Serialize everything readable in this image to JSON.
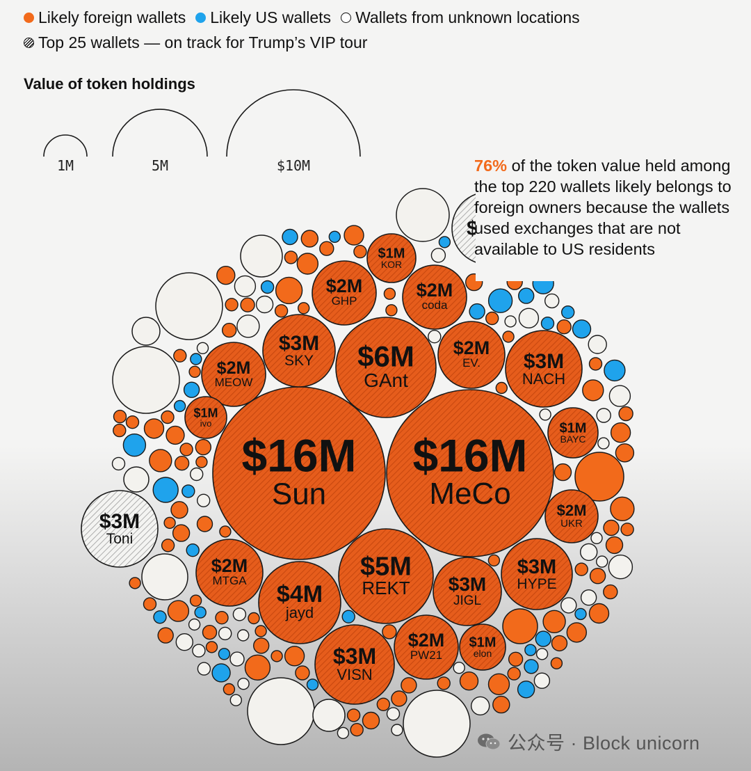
{
  "legend": {
    "foreign": "Likely foreign wallets",
    "us": "Likely US wallets",
    "unknown": "Wallets from unknown locations",
    "top25": "Top 25 wallets — on track for Trump’s VIP tour"
  },
  "size_legend": {
    "title": "Value of token holdings",
    "labels": [
      "1M",
      "5M",
      "$10M"
    ],
    "values_musd": [
      1,
      5,
      10
    ]
  },
  "annotation": {
    "highlight": "76%",
    "text": " of the token value held among the top 220 wallets likely belongs to foreign owners because the wallets used exchanges that are not available to US residents"
  },
  "watermark": "公众号 · Block unicorn",
  "colors": {
    "foreign": "#f26a1b",
    "foreign_hatched": "#e0581a",
    "us": "#1fa3ec",
    "unknown": "#f3f2ee",
    "top25_unknown": "#e8e8e6",
    "outline": "#1a1a1a"
  },
  "chart_data": {
    "type": "bubble",
    "value_unit": "USD millions",
    "labeled_wallets": [
      {
        "label": "$16M",
        "name": "Sun",
        "value": 16,
        "category": "foreign",
        "top25": true
      },
      {
        "label": "$16M",
        "name": "MeCo",
        "value": 16,
        "category": "foreign",
        "top25": true
      },
      {
        "label": "$6M",
        "name": "GAnt",
        "value": 6,
        "category": "foreign",
        "top25": true
      },
      {
        "label": "$5M",
        "name": "REKT",
        "value": 5,
        "category": "foreign",
        "top25": true
      },
      {
        "label": "$4M",
        "name": "jayd",
        "value": 4,
        "category": "foreign",
        "top25": true
      },
      {
        "label": "$3M",
        "name": "SKY",
        "value": 3,
        "category": "foreign",
        "top25": true
      },
      {
        "label": "$3M",
        "name": "NACH",
        "value": 3,
        "category": "foreign",
        "top25": true
      },
      {
        "label": "$3M",
        "name": "HYPE",
        "value": 3,
        "category": "foreign",
        "top25": true
      },
      {
        "label": "$3M",
        "name": "JIGL",
        "value": 3,
        "category": "foreign",
        "top25": true
      },
      {
        "label": "$3M",
        "name": "VISN",
        "value": 3,
        "category": "foreign",
        "top25": true
      },
      {
        "label": "$3M",
        "name": "Toni",
        "value": 3,
        "category": "unknown",
        "top25": true
      },
      {
        "label": "$2M",
        "name": "GHP",
        "value": 2,
        "category": "foreign",
        "top25": true
      },
      {
        "label": "$2M",
        "name": "coda",
        "value": 2,
        "category": "foreign",
        "top25": true
      },
      {
        "label": "$2M",
        "name": "EV.",
        "value": 2,
        "category": "foreign",
        "top25": true
      },
      {
        "label": "$2M",
        "name": "MEOW",
        "value": 2,
        "category": "foreign",
        "top25": true
      },
      {
        "label": "$2M",
        "name": "UKR",
        "value": 2,
        "category": "foreign",
        "top25": true
      },
      {
        "label": "$2M",
        "name": "MTGA",
        "value": 2,
        "category": "foreign",
        "top25": true
      },
      {
        "label": "$2M",
        "name": "PW21",
        "value": 2,
        "category": "foreign",
        "top25": true
      },
      {
        "label": "$1M",
        "name": "KOR",
        "value": 1,
        "category": "foreign",
        "top25": true
      },
      {
        "label": "$1M",
        "name": "ivo",
        "value": 1,
        "category": "foreign",
        "top25": true
      },
      {
        "label": "$1M",
        "name": "BAYC",
        "value": 1,
        "category": "foreign",
        "top25": true
      },
      {
        "label": "$1M",
        "name": "elon",
        "value": 1,
        "category": "foreign",
        "top25": true
      }
    ],
    "partially_visible": [
      {
        "label": "$",
        "value": 3,
        "category": "unknown",
        "top25": true
      }
    ],
    "small_wallets_visible": {
      "foreign": 88,
      "us": 30,
      "unknown": 40
    }
  }
}
